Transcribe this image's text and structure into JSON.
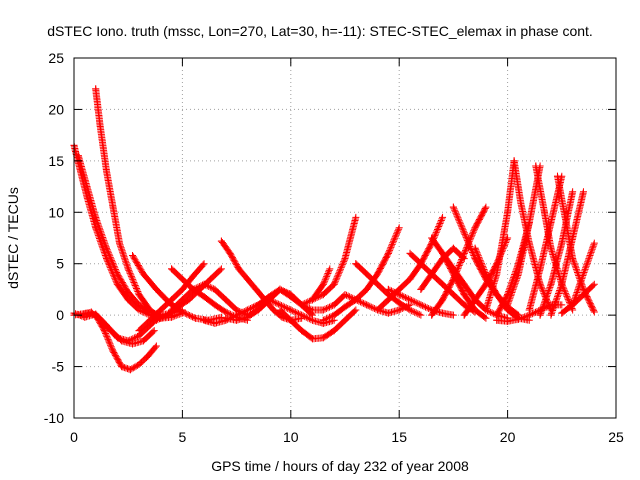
{
  "chart_data": {
    "type": "scatter",
    "title": "dSTEC Iono. truth (mssc, Lon=270, Lat=30, h=-11): STEC-STEC_elemax in phase cont.",
    "xlabel": "GPS time / hours of day 232 of year 2008",
    "ylabel": "dSTEC  / TECUs",
    "xlim": [
      0,
      25
    ],
    "ylim": [
      -10,
      25
    ],
    "xticks": [
      "0",
      "5",
      "10",
      "15",
      "20",
      "25"
    ],
    "yticks": [
      "-10",
      "-5",
      "0",
      "5",
      "10",
      "15",
      "20",
      "25"
    ],
    "grid": true,
    "marker": "+",
    "color": "#ff0000",
    "series": [
      {
        "x": [
          0.0,
          0.3,
          0.6,
          1.0,
          1.5,
          2.0,
          2.5,
          3.0,
          3.5,
          4.0,
          4.5
        ],
        "y": [
          16.5,
          14.0,
          11.5,
          8.5,
          5.5,
          3.0,
          1.5,
          0.5,
          0.0,
          -0.2,
          0.0
        ]
      },
      {
        "x": [
          0.2,
          0.6,
          1.0,
          1.5,
          2.0,
          2.5,
          3.0,
          3.5,
          4.0,
          4.5,
          5.0
        ],
        "y": [
          15.5,
          12.5,
          9.5,
          6.5,
          4.0,
          2.2,
          1.0,
          0.3,
          0.0,
          0.2,
          0.5
        ]
      },
      {
        "x": [
          1.0,
          1.2,
          1.5,
          1.8,
          2.1,
          2.5,
          3.0,
          3.5,
          4.0,
          4.5,
          5.0
        ],
        "y": [
          22.0,
          18.5,
          14.0,
          10.5,
          7.0,
          4.5,
          2.0,
          0.5,
          -0.3,
          -0.2,
          0.2
        ]
      },
      {
        "x": [
          0.0,
          0.5,
          1.0,
          1.5,
          2.0,
          2.5,
          3.0,
          3.5,
          4.0
        ],
        "y": [
          0.2,
          -0.2,
          0.1,
          -1.0,
          -2.2,
          -2.5,
          -2.0,
          -1.0,
          0.0
        ]
      },
      {
        "x": [
          0.0,
          0.6,
          1.0,
          1.4,
          1.8,
          2.2,
          2.6,
          3.0,
          3.4,
          3.8
        ],
        "y": [
          0.0,
          0.2,
          0.0,
          -1.5,
          -3.5,
          -5.0,
          -5.3,
          -4.8,
          -4.0,
          -3.0
        ]
      },
      {
        "x": [
          0.3,
          0.8,
          1.2,
          1.7,
          2.2,
          2.7,
          3.2,
          3.7
        ],
        "y": [
          0.0,
          0.3,
          -0.5,
          -1.5,
          -2.5,
          -2.8,
          -2.5,
          -1.5
        ]
      },
      {
        "x": [
          2.7,
          3.2,
          3.8,
          4.4,
          5.0,
          5.6,
          6.2,
          6.8
        ],
        "y": [
          5.8,
          4.0,
          2.5,
          1.2,
          0.3,
          -0.3,
          -0.5,
          -0.2
        ]
      },
      {
        "x": [
          3.0,
          3.5,
          4.0,
          4.5,
          5.0,
          5.5,
          6.0
        ],
        "y": [
          -1.5,
          -0.5,
          0.5,
          1.5,
          2.5,
          3.8,
          5.0
        ]
      },
      {
        "x": [
          4.5,
          5.0,
          5.5,
          6.0,
          6.5,
          7.0,
          7.5,
          8.0
        ],
        "y": [
          4.5,
          3.5,
          2.5,
          1.8,
          1.0,
          0.3,
          -0.2,
          -0.5
        ]
      },
      {
        "x": [
          3.8,
          4.3,
          4.8,
          5.3,
          5.8,
          6.3,
          6.8
        ],
        "y": [
          -0.5,
          0.0,
          0.8,
          1.5,
          2.5,
          3.5,
          4.5
        ]
      },
      {
        "x": [
          4.5,
          5.0,
          5.5,
          6.0,
          6.5,
          7.0,
          7.5,
          8.0,
          8.5,
          9.0,
          9.5
        ],
        "y": [
          0.5,
          1.5,
          2.5,
          3.0,
          2.5,
          1.5,
          0.5,
          0.0,
          0.5,
          1.5,
          2.5
        ]
      },
      {
        "x": [
          6.0,
          6.5,
          7.0,
          7.5,
          8.0,
          8.5,
          9.0,
          9.5,
          10.0
        ],
        "y": [
          -0.5,
          -0.8,
          -0.5,
          0.0,
          0.5,
          1.0,
          1.8,
          2.5,
          2.0
        ]
      },
      {
        "x": [
          6.8,
          7.2,
          7.6,
          8.0,
          8.4,
          8.8,
          9.2,
          9.6,
          10.0,
          10.5
        ],
        "y": [
          7.2,
          6.0,
          4.5,
          3.5,
          2.5,
          1.5,
          0.5,
          -0.2,
          -0.5,
          -0.3
        ]
      },
      {
        "x": [
          7.0,
          7.5,
          8.0,
          8.5,
          9.0,
          9.5,
          10.0,
          10.5,
          11.0
        ],
        "y": [
          -0.3,
          -0.5,
          -0.2,
          0.5,
          1.5,
          2.5,
          2.0,
          1.0,
          0.0
        ]
      },
      {
        "x": [
          8.0,
          8.5,
          9.0,
          9.5,
          10.0,
          10.5,
          11.0,
          11.5,
          12.0
        ],
        "y": [
          0.5,
          1.0,
          1.5,
          1.0,
          0.5,
          0.0,
          -0.5,
          -0.8,
          -0.5
        ]
      },
      {
        "x": [
          9.5,
          10.0,
          10.5,
          11.0,
          11.5,
          12.0,
          12.5,
          13.0
        ],
        "y": [
          0.5,
          -0.5,
          -1.5,
          -2.3,
          -2.2,
          -1.5,
          -0.5,
          0.5
        ]
      },
      {
        "x": [
          9.5,
          10.0,
          10.5,
          11.0,
          11.5,
          12.0,
          12.5
        ],
        "y": [
          2.5,
          1.8,
          1.0,
          0.5,
          0.5,
          1.0,
          2.0
        ]
      },
      {
        "x": [
          10.5,
          11.0,
          11.5,
          12.0,
          12.5,
          13.0
        ],
        "y": [
          1.0,
          1.5,
          2.0,
          3.0,
          5.5,
          9.5
        ]
      },
      {
        "x": [
          11.0,
          11.5,
          11.8
        ],
        "y": [
          1.5,
          3.0,
          4.5
        ]
      },
      {
        "x": [
          11.5,
          12.0,
          12.5,
          13.0,
          13.5,
          14.0,
          14.5,
          15.0
        ],
        "y": [
          -0.5,
          0.0,
          0.8,
          1.5,
          2.5,
          4.0,
          6.0,
          8.5
        ]
      },
      {
        "x": [
          12.5,
          13.0,
          13.5,
          14.0,
          14.5,
          15.0,
          15.5
        ],
        "y": [
          2.0,
          1.5,
          1.0,
          0.5,
          0.2,
          0.5,
          1.0
        ]
      },
      {
        "x": [
          13.0,
          13.5,
          14.0,
          14.5,
          15.0,
          15.5,
          16.0
        ],
        "y": [
          5.0,
          4.0,
          3.0,
          2.0,
          1.2,
          0.5,
          0.0
        ]
      },
      {
        "x": [
          14.0,
          14.5,
          15.0,
          15.5,
          16.0,
          16.5,
          17.0
        ],
        "y": [
          0.5,
          1.5,
          2.5,
          3.5,
          5.0,
          7.0,
          9.5
        ]
      },
      {
        "x": [
          14.5,
          15.0,
          15.5,
          16.0,
          16.5,
          17.0,
          17.5
        ],
        "y": [
          2.5,
          2.0,
          1.5,
          1.0,
          0.5,
          0.2,
          0.0
        ]
      },
      {
        "x": [
          15.5,
          16.0,
          16.5,
          17.0,
          17.5,
          18.0,
          18.5
        ],
        "y": [
          6.0,
          5.0,
          4.0,
          3.0,
          2.0,
          1.0,
          0.3
        ]
      },
      {
        "x": [
          16.0,
          16.5,
          17.0,
          17.5,
          18.0
        ],
        "y": [
          2.5,
          4.0,
          5.5,
          6.5,
          5.5
        ]
      },
      {
        "x": [
          16.5,
          17.0,
          17.5,
          18.0,
          18.5,
          19.0
        ],
        "y": [
          7.5,
          6.0,
          4.0,
          2.0,
          0.5,
          -0.3
        ]
      },
      {
        "x": [
          16.5,
          17.0,
          17.5,
          18.0,
          18.5,
          19.0
        ],
        "y": [
          0.0,
          1.5,
          3.5,
          6.0,
          8.5,
          10.5
        ]
      },
      {
        "x": [
          17.0,
          17.5,
          18.0,
          18.5,
          19.0,
          19.5,
          20.0
        ],
        "y": [
          6.0,
          4.5,
          3.0,
          1.5,
          0.5,
          0.0,
          -0.3
        ]
      },
      {
        "x": [
          17.5,
          18.0,
          18.5,
          19.0,
          19.5,
          20.0,
          20.5
        ],
        "y": [
          10.5,
          8.0,
          5.5,
          3.5,
          2.0,
          0.8,
          0.0
        ]
      },
      {
        "x": [
          18.0,
          18.5,
          19.0,
          19.5,
          20.0
        ],
        "y": [
          0.0,
          1.5,
          3.0,
          5.0,
          7.5
        ]
      },
      {
        "x": [
          18.5,
          19.0,
          19.5,
          20.0,
          20.5,
          21.0
        ],
        "y": [
          6.5,
          4.0,
          2.0,
          0.5,
          -0.3,
          -0.5
        ]
      },
      {
        "x": [
          19.0,
          19.5,
          20.0,
          20.3
        ],
        "y": [
          0.5,
          4.0,
          10.0,
          15.0
        ]
      },
      {
        "x": [
          19.5,
          20.0,
          20.5,
          21.0
        ],
        "y": [
          0.0,
          2.0,
          5.0,
          9.0
        ]
      },
      {
        "x": [
          20.3,
          20.6,
          21.0,
          21.5,
          22.0
        ],
        "y": [
          15.0,
          11.0,
          7.0,
          3.0,
          0.5
        ]
      },
      {
        "x": [
          20.0,
          20.5,
          21.0,
          21.5
        ],
        "y": [
          1.0,
          4.0,
          9.0,
          14.5
        ]
      },
      {
        "x": [
          21.3,
          21.7,
          22.0,
          22.5,
          23.0
        ],
        "y": [
          14.5,
          10.0,
          6.5,
          3.0,
          0.5
        ]
      },
      {
        "x": [
          21.0,
          21.5,
          22.0,
          22.5
        ],
        "y": [
          0.5,
          4.5,
          9.0,
          13.5
        ]
      },
      {
        "x": [
          22.3,
          22.7,
          23.0,
          23.5,
          24.0
        ],
        "y": [
          13.5,
          9.0,
          5.5,
          2.5,
          0.3
        ]
      },
      {
        "x": [
          21.5,
          22.0,
          22.5,
          23.0
        ],
        "y": [
          0.0,
          3.0,
          7.0,
          12.0
        ]
      },
      {
        "x": [
          22.0,
          22.5,
          23.0,
          23.5
        ],
        "y": [
          0.0,
          3.0,
          7.5,
          12.0
        ]
      },
      {
        "x": [
          23.0,
          23.5,
          24.0
        ],
        "y": [
          1.0,
          4.0,
          7.0
        ]
      },
      {
        "x": [
          22.5,
          23.0,
          23.5,
          24.0
        ],
        "y": [
          0.2,
          1.0,
          2.0,
          3.0
        ]
      },
      {
        "x": [
          19.5,
          20.0,
          20.5,
          21.0,
          21.5,
          22.0,
          22.5
        ],
        "y": [
          -0.5,
          -0.6,
          -0.4,
          0.0,
          0.5,
          1.0,
          1.0
        ]
      }
    ]
  }
}
